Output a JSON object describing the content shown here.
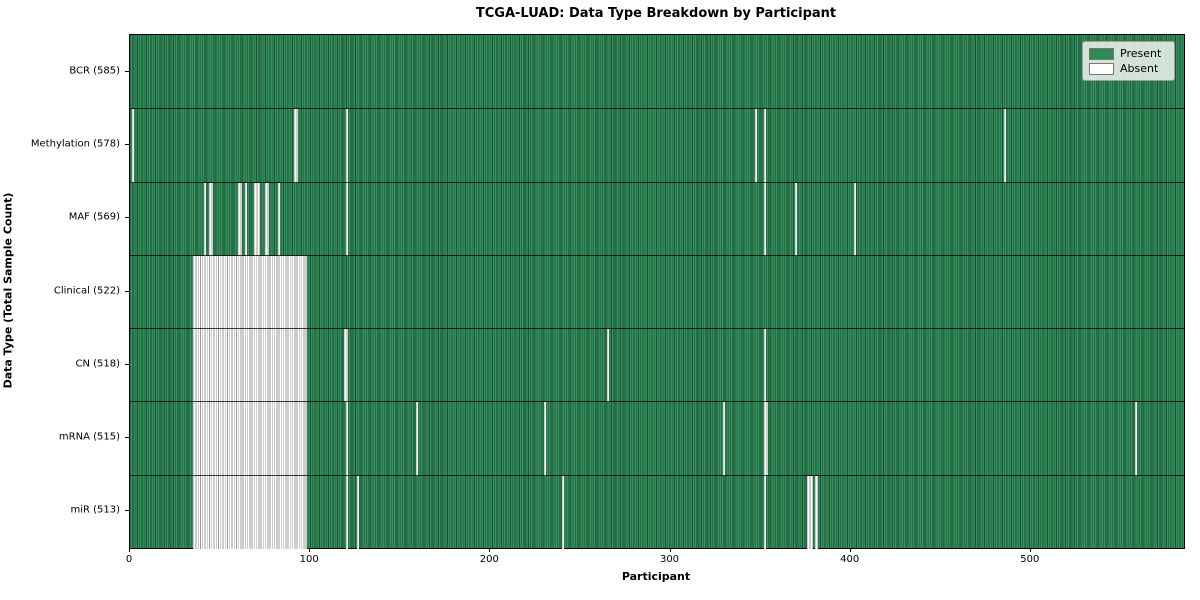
{
  "chart_data": {
    "type": "heatmap",
    "title": "TCGA-LUAD: Data Type Breakdown by Participant",
    "xlabel": "Participant",
    "ylabel": "Data Type (Total Sample Count)",
    "n_participants": 585,
    "x_ticks": [
      0,
      100,
      200,
      300,
      400,
      500
    ],
    "xlim": [
      0,
      585
    ],
    "grid": false,
    "legend_position": "upper right",
    "legend": [
      {
        "label": "Present",
        "color": "#2e8b57"
      },
      {
        "label": "Absent",
        "color": "#ffffff"
      }
    ],
    "colors": {
      "present": "#2e8b57",
      "present_edge": "#1d5334",
      "absent": "#ffffff",
      "absent_edge": "#9b9b9b"
    },
    "rows": [
      {
        "label": "BCR",
        "count": 585,
        "display": "BCR (585)",
        "absent_segments": []
      },
      {
        "label": "Methylation",
        "count": 578,
        "display": "Methylation (578)",
        "absent_segments": [
          [
            1,
            1
          ],
          [
            91,
            92
          ],
          [
            120,
            120
          ],
          [
            347,
            347
          ],
          [
            352,
            352
          ],
          [
            485,
            485
          ]
        ]
      },
      {
        "label": "MAF",
        "count": 569,
        "display": "MAF (569)",
        "absent_segments": [
          [
            41,
            41
          ],
          [
            44,
            45
          ],
          [
            60,
            61
          ],
          [
            64,
            64
          ],
          [
            69,
            71
          ],
          [
            75,
            76
          ],
          [
            82,
            82
          ],
          [
            120,
            120
          ],
          [
            352,
            352
          ],
          [
            369,
            369
          ],
          [
            402,
            402
          ]
        ]
      },
      {
        "label": "Clinical",
        "count": 522,
        "display": "Clinical (522)",
        "absent_segments": [
          [
            35,
            97
          ]
        ]
      },
      {
        "label": "CN",
        "count": 518,
        "display": "CN (518)",
        "absent_segments": [
          [
            35,
            97
          ],
          [
            119,
            120
          ],
          [
            265,
            265
          ],
          [
            352,
            352
          ]
        ]
      },
      {
        "label": "mRNA",
        "count": 515,
        "display": "mRNA (515)",
        "absent_segments": [
          [
            35,
            97
          ],
          [
            120,
            120
          ],
          [
            159,
            159
          ],
          [
            230,
            230
          ],
          [
            329,
            329
          ],
          [
            352,
            353
          ],
          [
            558,
            558
          ]
        ]
      },
      {
        "label": "miR",
        "count": 513,
        "display": "miR (513)",
        "absent_segments": [
          [
            35,
            97
          ],
          [
            120,
            120
          ],
          [
            126,
            126
          ],
          [
            240,
            240
          ],
          [
            352,
            352
          ],
          [
            376,
            378
          ],
          [
            380,
            381
          ]
        ]
      }
    ]
  }
}
